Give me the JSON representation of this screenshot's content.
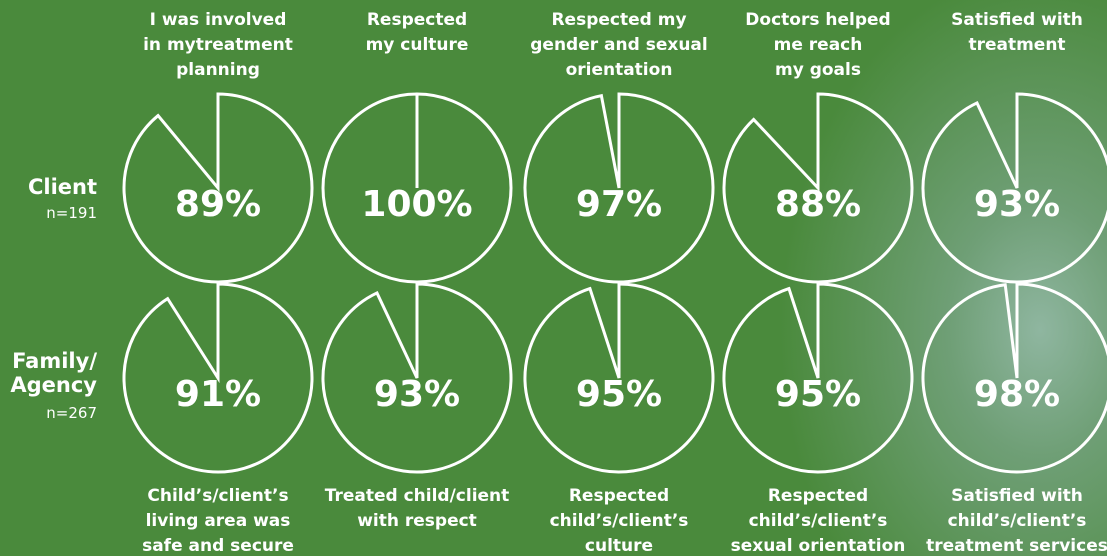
{
  "chart_data": {
    "type": "pie-grid",
    "color": "#ffffff",
    "rows": [
      {
        "name": "Client",
        "note": "n=191",
        "labels": [
          "I was involved\nin mytreatment\nplanning",
          "Respected\nmy culture",
          "Respected my\ngender and sexual\norientation",
          "Doctors helped\nme reach\nmy goals",
          "Satisfied with\ntreatment"
        ],
        "values": [
          89,
          100,
          97,
          88,
          93
        ],
        "value_labels": [
          "89%",
          "100%",
          "97%",
          "88%",
          "93%"
        ]
      },
      {
        "name": "Family/\nAgency",
        "note": "n=267",
        "labels": [
          "Child’s/client’s\nliving area was\nsafe and secure",
          "Treated child/client\nwith respect",
          "Respected\nchild’s/client’s\nculture",
          "Respected\nchild’s/client’s\nsexual orientation",
          "Satisfied with\nchild’s/client’s\ntreatment services"
        ],
        "values": [
          91,
          93,
          95,
          95,
          98
        ],
        "value_labels": [
          "91%",
          "93%",
          "95%",
          "95%",
          "98%"
        ]
      }
    ]
  }
}
